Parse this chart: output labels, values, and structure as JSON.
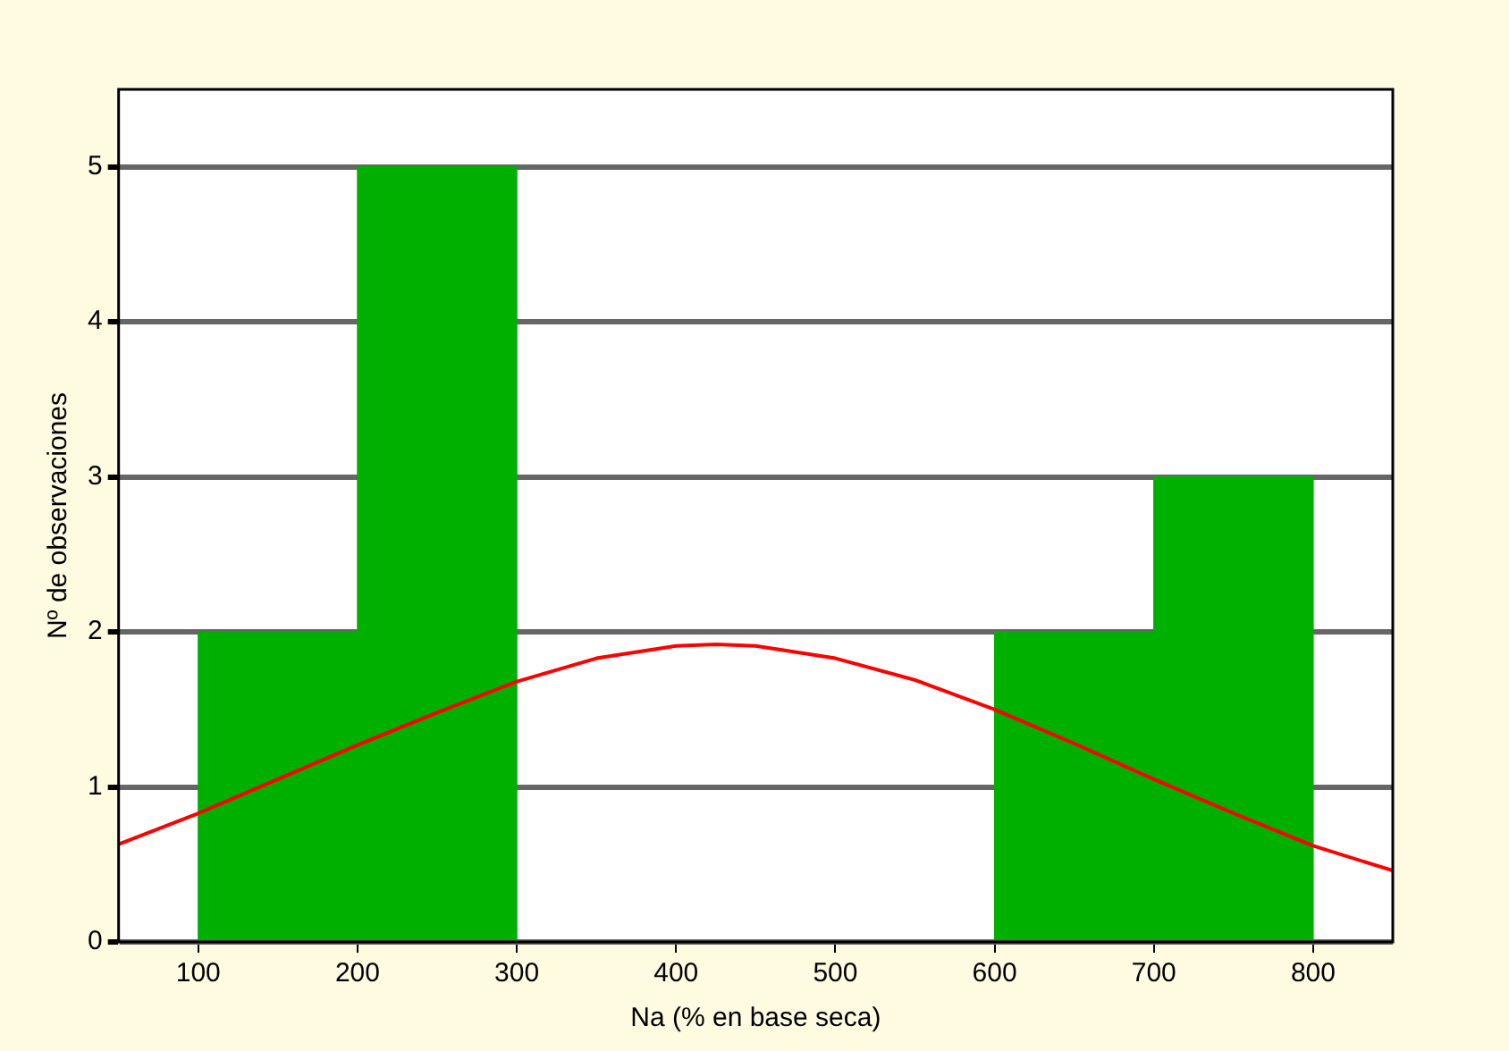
{
  "chart_data": {
    "type": "histogram",
    "xlabel": "Na (% en base seca)",
    "ylabel": "Nº de observaciones",
    "bins": [
      100,
      200,
      300,
      400,
      500,
      600,
      700,
      800
    ],
    "values": [
      2,
      5,
      0,
      0,
      0,
      2,
      3
    ],
    "color": "#00b000",
    "series": [
      {
        "type": "line",
        "color": "#ff0000",
        "x": [
          50,
          100,
          150,
          200,
          250,
          300,
          350,
          400,
          425,
          450,
          500,
          550,
          600,
          650,
          700,
          750,
          800,
          850
        ],
        "values": [
          0.63,
          0.83,
          1.05,
          1.27,
          1.48,
          1.68,
          1.83,
          1.91,
          1.92,
          1.91,
          1.83,
          1.69,
          1.5,
          1.28,
          1.05,
          0.83,
          0.62,
          0.46
        ]
      }
    ],
    "xlim": [
      50,
      850
    ],
    "ylim": [
      0,
      5.5
    ],
    "xticks": [
      100,
      200,
      300,
      400,
      500,
      600,
      700,
      800
    ],
    "yticks": [
      0,
      1,
      2,
      3,
      4,
      5
    ],
    "grid": "y",
    "legend": false,
    "marker": "none",
    "line_style": "solid"
  }
}
